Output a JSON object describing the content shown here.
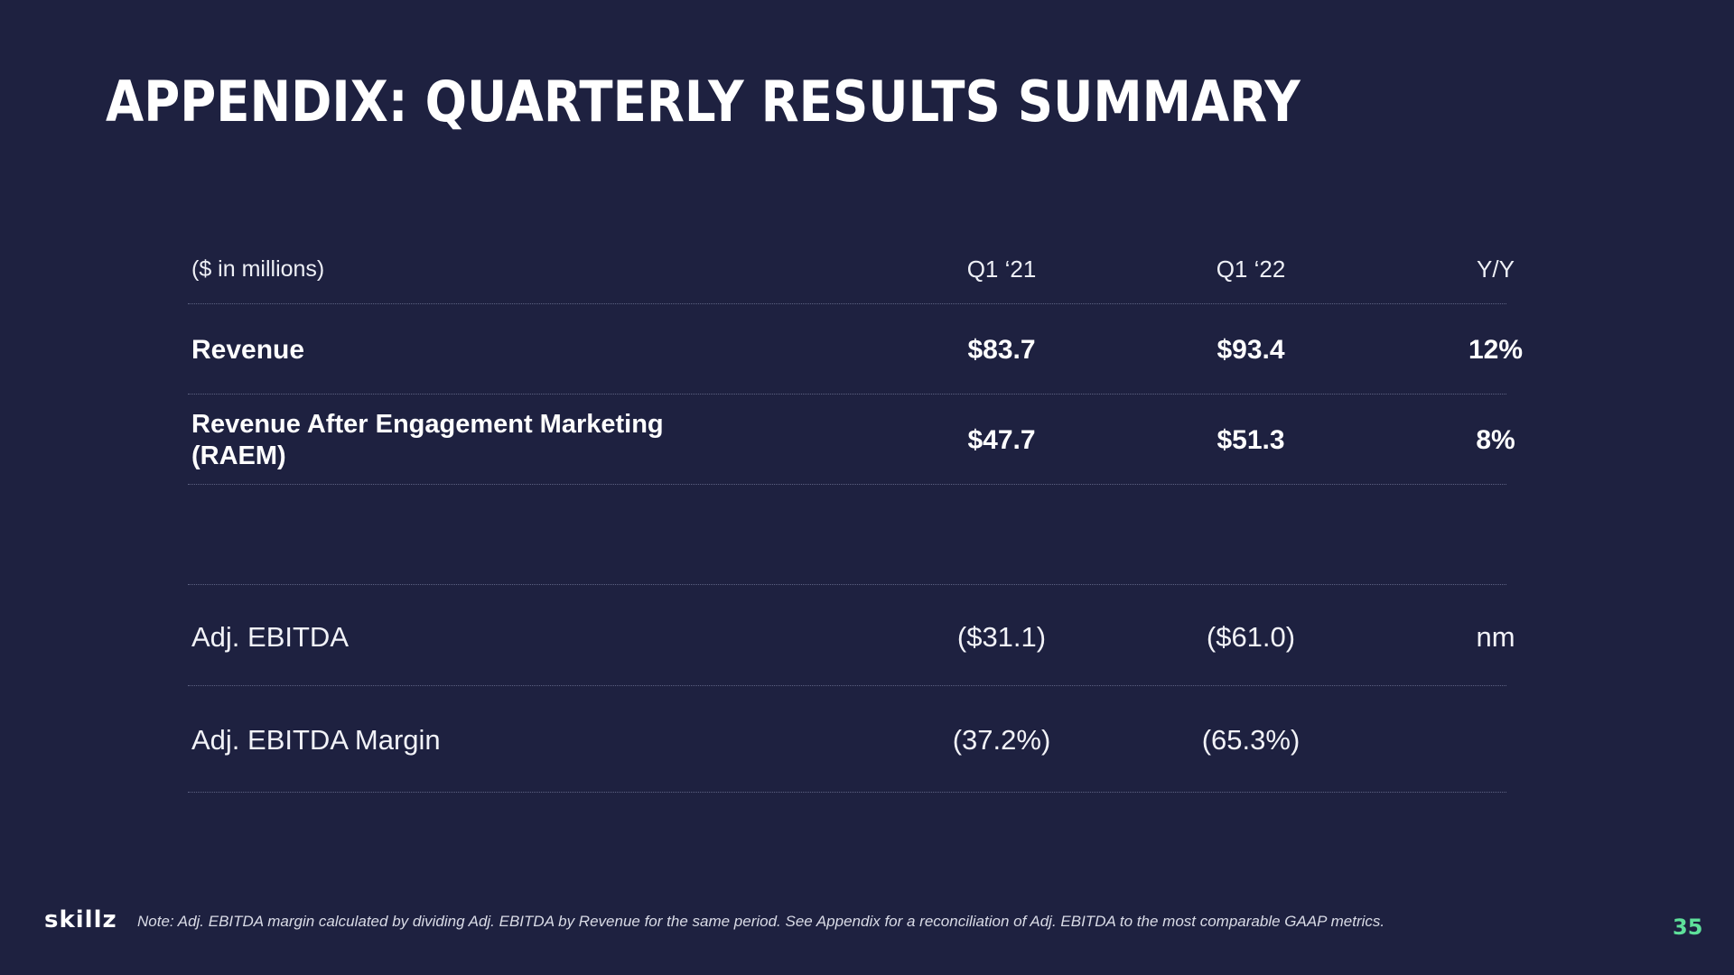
{
  "title": "APPENDIX: QUARTERLY RESULTS SUMMARY",
  "table": {
    "header": {
      "label": "($ in millions)",
      "col1": "Q1 ‘21",
      "col2": "Q1 ‘22",
      "col3": "Y/Y"
    },
    "rows": [
      {
        "label": "Revenue",
        "col1": "$83.7",
        "col2": "$93.4",
        "col3": "12%",
        "style": "bold"
      },
      {
        "label": "Revenue After Engagement Marketing (RAEM)",
        "col1": "$47.7",
        "col2": "$51.3",
        "col3": "8%",
        "style": "bold"
      },
      {
        "label": "Adj. EBITDA",
        "col1": "($31.1)",
        "col2": "($61.0)",
        "col3": "nm",
        "style": "light"
      },
      {
        "label": "Adj. EBITDA Margin",
        "col1": "(37.2%)",
        "col2": "(65.3%)",
        "col3": "",
        "style": "light"
      }
    ]
  },
  "footer": {
    "logo": "skillz",
    "note": "Note: Adj. EBITDA margin calculated by dividing Adj. EBITDA by Revenue for the same period.  See Appendix for a reconciliation of Adj. EBITDA to the most comparable GAAP metrics.",
    "page_number": "35"
  },
  "colors": {
    "background": "#1e2140",
    "accent": "#5ee09a",
    "divider": "#5d6282"
  }
}
